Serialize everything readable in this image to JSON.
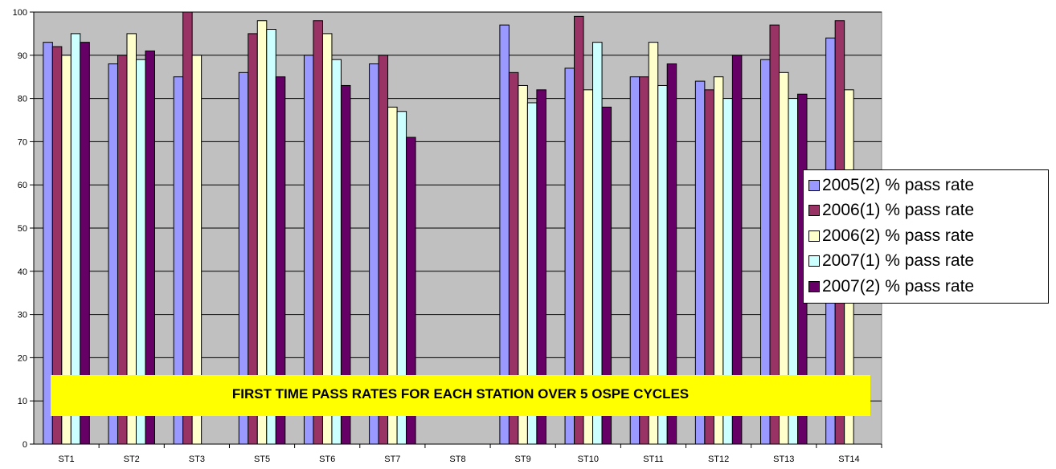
{
  "chart_data": {
    "type": "bar",
    "title": "FIRST TIME PASS RATES FOR EACH STATION OVER 5 OSPE CYCLES",
    "xlabel": "",
    "ylabel": "",
    "ylim": [
      0,
      100
    ],
    "yticks": [
      0,
      10,
      20,
      30,
      40,
      50,
      60,
      70,
      80,
      90,
      100
    ],
    "grid": true,
    "legend_position": "right",
    "plot_background": "#c0c0c0",
    "categories": [
      "ST1",
      "ST2",
      "ST3",
      "ST5",
      "ST6",
      "ST7",
      "ST8",
      "ST9",
      "ST10",
      "ST11",
      "ST12",
      "ST13",
      "ST14"
    ],
    "series": [
      {
        "name": "2005(2) % pass rate",
        "color": "#9999ff",
        "values": [
          93,
          88,
          85,
          86,
          90,
          88,
          null,
          97,
          87,
          85,
          84,
          89,
          94
        ]
      },
      {
        "name": "2006(1) % pass rate",
        "color": "#993366",
        "values": [
          92,
          90,
          100,
          95,
          98,
          90,
          null,
          86,
          99,
          85,
          82,
          97,
          98
        ]
      },
      {
        "name": "2006(2) % pass rate",
        "color": "#ffffcc",
        "values": [
          90,
          95,
          90,
          98,
          95,
          78,
          null,
          83,
          82,
          93,
          85,
          86,
          82
        ]
      },
      {
        "name": "2007(1) % pass rate",
        "color": "#ccffff",
        "values": [
          95,
          89,
          null,
          96,
          89,
          77,
          null,
          79,
          93,
          83,
          80,
          80,
          null
        ]
      },
      {
        "name": "2007(2) % pass rate",
        "color": "#660066",
        "values": [
          93,
          91,
          null,
          85,
          83,
          71,
          null,
          82,
          78,
          88,
          90,
          81,
          null
        ]
      }
    ]
  }
}
